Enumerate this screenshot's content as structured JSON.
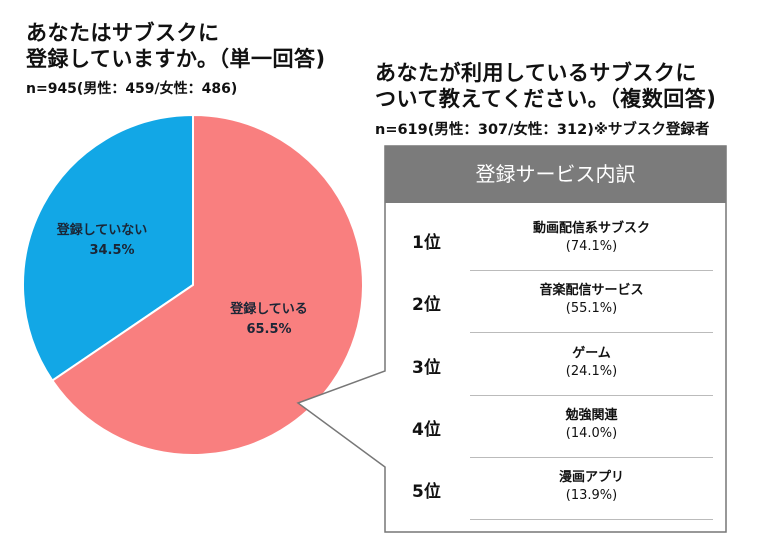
{
  "left": {
    "question_line1": "あなたはサブスクに",
    "question_line2": "登録していますか。（単一回答)",
    "sample": "n=945(男性：459/女性：486)"
  },
  "right": {
    "question_line1": "あなたが利用しているサブスクに",
    "question_line2": "ついて教えてください。（複数回答)",
    "sample": "n=619(男性：307/女性：312)※サブスク登録者",
    "box_title": "登録サービス内訳",
    "rows": [
      {
        "rank": "1位",
        "name": "動画配信系サブスク",
        "pct": "(74.1%)"
      },
      {
        "rank": "2位",
        "name": "音楽配信サービス",
        "pct": "(55.1%)"
      },
      {
        "rank": "3位",
        "name": "ゲーム",
        "pct": "(24.1%)"
      },
      {
        "rank": "4位",
        "name": "勉強関連",
        "pct": "(14.0%)"
      },
      {
        "rank": "5位",
        "name": "漫画アプリ",
        "pct": "(13.9%)"
      }
    ]
  },
  "chart_data": [
    {
      "type": "pie",
      "slices": [
        {
          "label": "登録していない",
          "value": 34.5,
          "value_label": "34.5%",
          "color": "#12a7e6"
        },
        {
          "label": "登録している",
          "value": 65.5,
          "value_label": "65.5%",
          "color": "#f97f7f"
        }
      ]
    },
    {
      "type": "table",
      "columns": [
        "rank",
        "service",
        "percent"
      ],
      "rows": [
        [
          "1位",
          "動画配信系サブスク",
          74.1
        ],
        [
          "2位",
          "音楽配信サービス",
          55.1
        ],
        [
          "3位",
          "ゲーム",
          24.1
        ],
        [
          "4位",
          "勉強関連",
          14.0
        ],
        [
          "5位",
          "漫画アプリ",
          13.9
        ]
      ]
    }
  ]
}
